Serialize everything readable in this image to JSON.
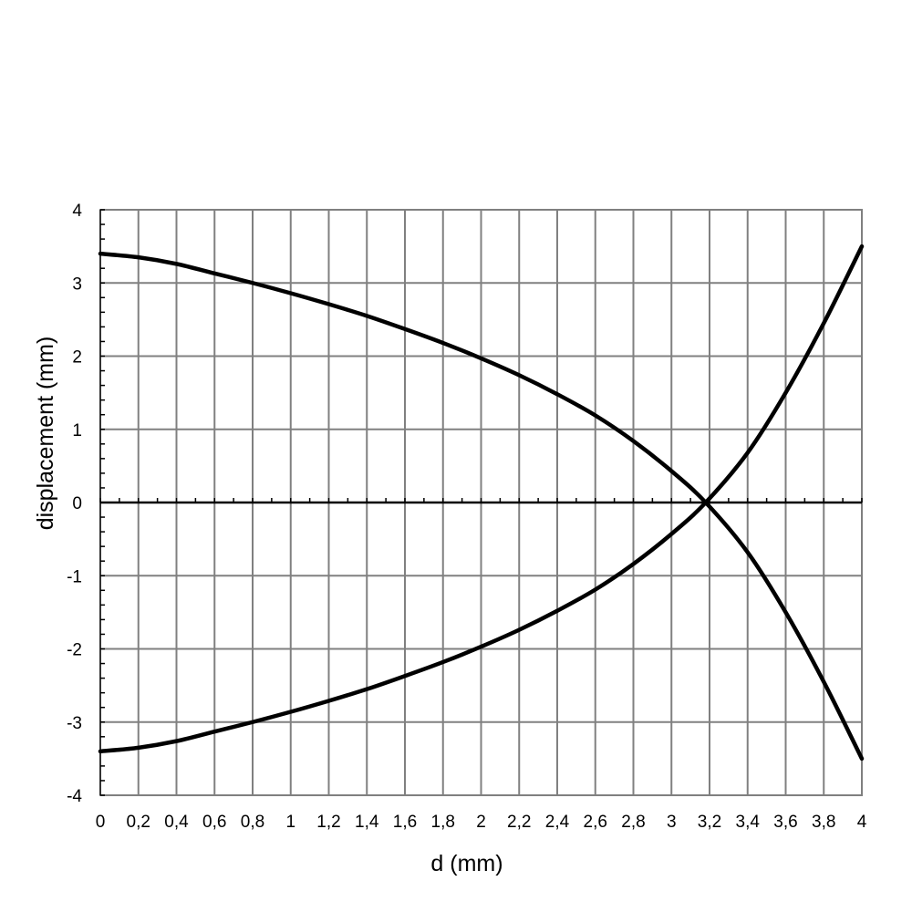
{
  "chart_data": {
    "type": "line",
    "title": "",
    "xlabel": "d (mm)",
    "ylabel": "displacement (mm)",
    "xlim": [
      0,
      4
    ],
    "ylim": [
      -4,
      4
    ],
    "grid": true,
    "x_tick_labels": [
      "0",
      "0,2",
      "0,4",
      "0,6",
      "0,8",
      "1",
      "1,2",
      "1,4",
      "1,6",
      "1,8",
      "2",
      "2,2",
      "2,4",
      "2,6",
      "2,8",
      "3",
      "3,2",
      "3,4",
      "3,6",
      "3,8",
      "4"
    ],
    "y_tick_labels": [
      "4",
      "3",
      "2",
      "1",
      "0",
      "-1",
      "-2",
      "-3",
      "-4"
    ],
    "x": [
      0,
      0.2,
      0.4,
      0.6,
      0.8,
      1.0,
      1.2,
      1.4,
      1.6,
      1.8,
      2.0,
      2.2,
      2.4,
      2.6,
      2.8,
      3.0,
      3.18,
      3.4,
      3.6,
      3.8,
      4.0
    ],
    "series": [
      {
        "values": [
          3.4,
          3.35,
          3.26,
          3.13,
          3.0,
          2.86,
          2.71,
          2.55,
          2.37,
          2.18,
          1.97,
          1.74,
          1.48,
          1.19,
          0.84,
          0.43,
          0.0,
          -0.68,
          -1.5,
          -2.45,
          -3.5
        ]
      },
      {
        "values": [
          -3.4,
          -3.35,
          -3.26,
          -3.13,
          -3.0,
          -2.86,
          -2.71,
          -2.55,
          -2.37,
          -2.18,
          -1.97,
          -1.74,
          -1.48,
          -1.19,
          -0.84,
          -0.43,
          0.0,
          0.68,
          1.5,
          2.45,
          3.5
        ]
      }
    ]
  }
}
